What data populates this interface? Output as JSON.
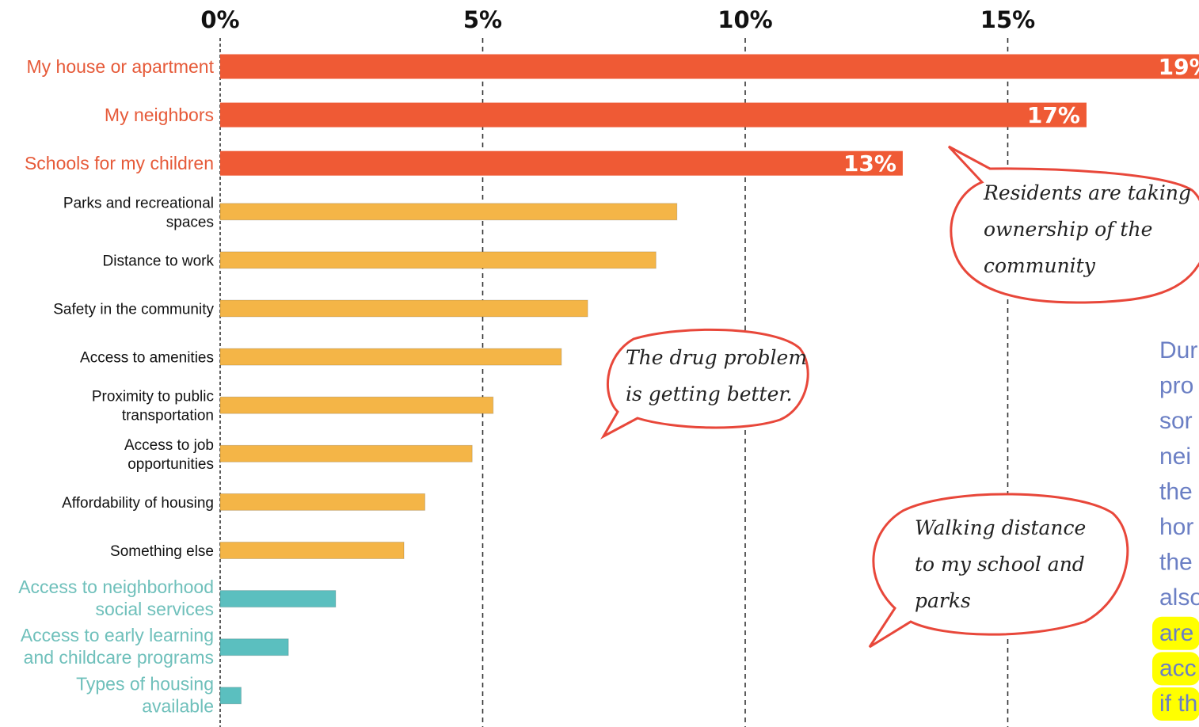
{
  "chart_data": {
    "type": "bar",
    "orientation": "horizontal",
    "xlim": [
      0,
      19
    ],
    "xticks": [
      {
        "value": 0,
        "label": "0%"
      },
      {
        "value": 5,
        "label": "5%"
      },
      {
        "value": 10,
        "label": "10%"
      },
      {
        "value": 15,
        "label": "15%"
      }
    ],
    "grid": "dashed vertical",
    "categories": [
      {
        "lines": [
          "My house or apartment"
        ],
        "value": 19,
        "label": "19%",
        "group": "top"
      },
      {
        "lines": [
          "My neighbors"
        ],
        "value": 16.5,
        "label": "17%",
        "group": "top"
      },
      {
        "lines": [
          "Schools for my children"
        ],
        "value": 13,
        "label": "13%",
        "group": "top"
      },
      {
        "lines": [
          "Parks and recreational",
          "spaces"
        ],
        "value": 8.7,
        "group": "mid"
      },
      {
        "lines": [
          "Distance to work"
        ],
        "value": 8.3,
        "group": "mid"
      },
      {
        "lines": [
          "Safety in the community"
        ],
        "value": 7.0,
        "group": "mid"
      },
      {
        "lines": [
          "Access to amenities"
        ],
        "value": 6.5,
        "group": "mid"
      },
      {
        "lines": [
          "Proximity to public",
          "transportation"
        ],
        "value": 5.2,
        "group": "mid"
      },
      {
        "lines": [
          "Access to job",
          "opportunities"
        ],
        "value": 4.8,
        "group": "mid"
      },
      {
        "lines": [
          "Affordability of housing"
        ],
        "value": 3.9,
        "group": "mid"
      },
      {
        "lines": [
          "Something else"
        ],
        "value": 3.5,
        "group": "mid"
      },
      {
        "lines": [
          "Access to neighborhood",
          "social services"
        ],
        "value": 2.2,
        "group": "low"
      },
      {
        "lines": [
          "Access to early learning",
          "and childcare programs"
        ],
        "value": 1.3,
        "group": "low"
      },
      {
        "lines": [
          "Types of housing",
          "available"
        ],
        "value": 0.4,
        "group": "low"
      }
    ],
    "colors": {
      "top": "#ef5a35",
      "mid": "#f4b547",
      "low": "#5bbfbf",
      "top_label": "#e65a39",
      "mid_label": "#111111",
      "low_label": "#6fc0bb",
      "bubble_border": "#e8473a"
    },
    "annotations": [
      {
        "lines": [
          "Residents are taking",
          "ownership of the",
          "community"
        ]
      },
      {
        "lines": [
          "The drug problem",
          "is getting better."
        ]
      },
      {
        "lines": [
          "Walking distance",
          "to my school and",
          "parks"
        ]
      }
    ]
  },
  "side_note": {
    "color": "#6b7fc4",
    "highlight": "#ffff00",
    "lines": [
      "Dur",
      "pro",
      "sor",
      "nei",
      "the",
      "hor",
      "the",
      "also",
      "are",
      "acc",
      "if th"
    ]
  }
}
